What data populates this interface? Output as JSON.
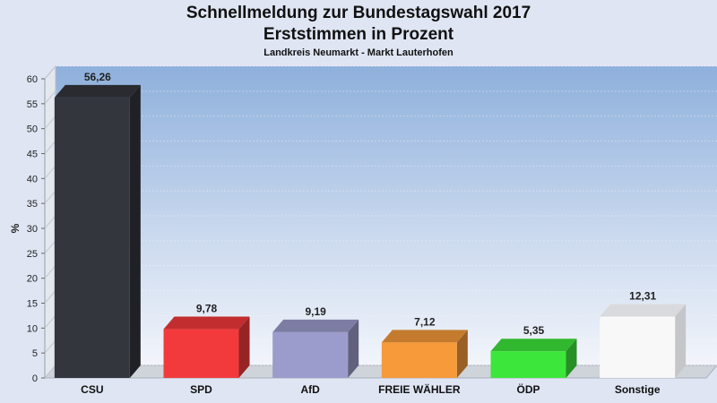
{
  "header": {
    "title": "Schnellmeldung zur Bundestagswahl 2017",
    "subtitle": "Erststimmen in Prozent",
    "region": "Landkreis Neumarkt - Markt Lauterhofen"
  },
  "chart_data": {
    "type": "bar",
    "title": "Schnellmeldung zur Bundestagswahl 2017",
    "subtitle": "Erststimmen in Prozent",
    "caption": "Landkreis Neumarkt - Markt Lauterhofen",
    "ylabel": "%",
    "xlabel": "",
    "ylim": [
      0,
      60
    ],
    "yticks": [
      0,
      5,
      10,
      15,
      20,
      25,
      30,
      35,
      40,
      45,
      50,
      55,
      60
    ],
    "grid": true,
    "categories": [
      "CSU",
      "SPD",
      "AfD",
      "FREIE WÄHLER",
      "ÖDP",
      "Sonstige"
    ],
    "values": [
      56.26,
      9.78,
      9.19,
      7.12,
      5.35,
      12.31
    ],
    "value_labels": [
      "56,26",
      "9,78",
      "9,19",
      "7,12",
      "5,35",
      "12,31"
    ],
    "colors": [
      "#33363d",
      "#f23a3c",
      "#9c9ccc",
      "#f69a3a",
      "#3de63b",
      "#f8f8f8"
    ]
  }
}
